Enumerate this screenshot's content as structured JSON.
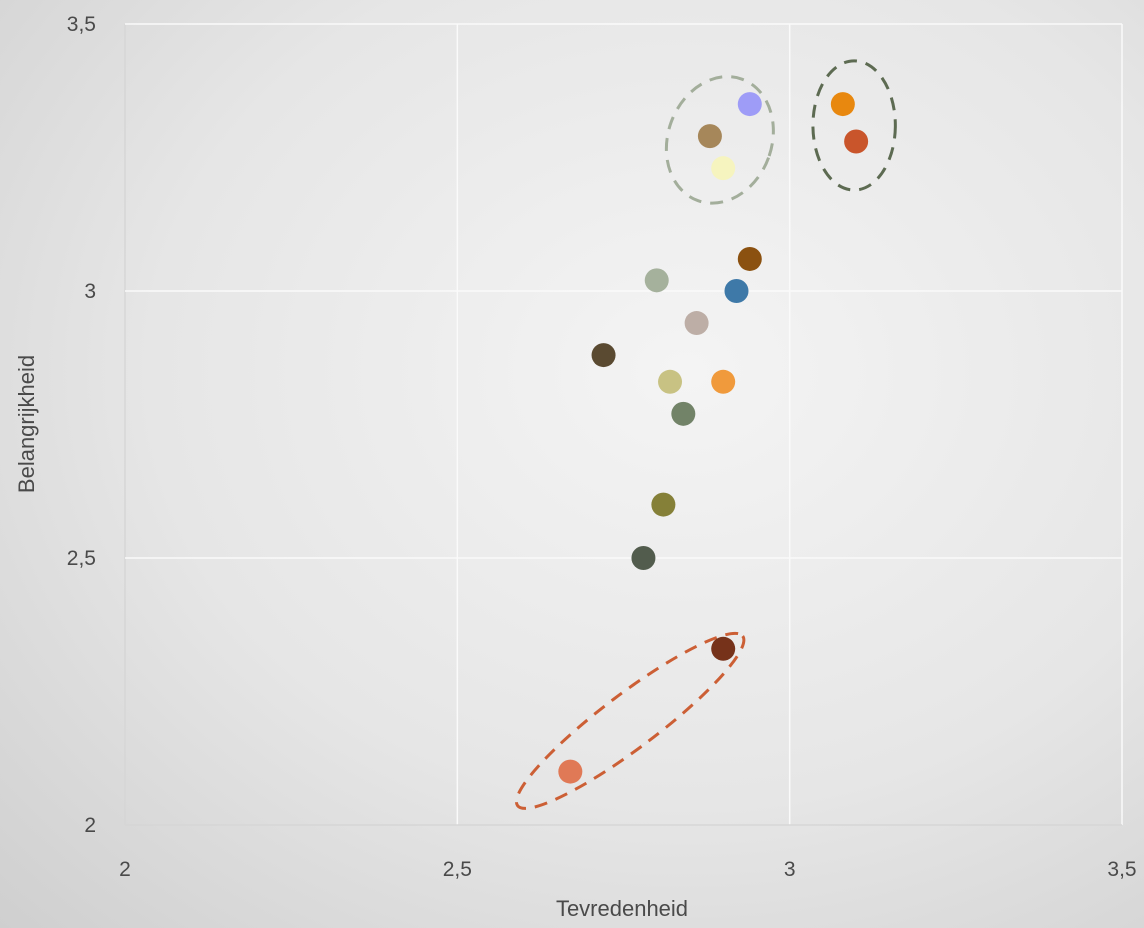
{
  "chart_data": {
    "type": "scatter",
    "title": "",
    "xlabel": "Tevredenheid",
    "ylabel": "Belangrijkheid",
    "xlim": [
      2,
      3.5
    ],
    "ylim": [
      2,
      3.5
    ],
    "xticks": [
      "2",
      "2,5",
      "3",
      "3,5"
    ],
    "yticks": [
      "2",
      "2,5",
      "3",
      "3,5"
    ],
    "grid": true,
    "points": [
      {
        "x": 2.94,
        "y": 3.35,
        "color": "#9e9cf7"
      },
      {
        "x": 3.08,
        "y": 3.35,
        "color": "#e8880f"
      },
      {
        "x": 2.88,
        "y": 3.29,
        "color": "#a6875a"
      },
      {
        "x": 3.1,
        "y": 3.28,
        "color": "#c9552b"
      },
      {
        "x": 2.9,
        "y": 3.23,
        "color": "#f6f4bf"
      },
      {
        "x": 2.94,
        "y": 3.06,
        "color": "#8b5110"
      },
      {
        "x": 2.8,
        "y": 3.02,
        "color": "#a5b19c"
      },
      {
        "x": 2.92,
        "y": 3.0,
        "color": "#3e79a8"
      },
      {
        "x": 2.86,
        "y": 2.94,
        "color": "#bdaea6"
      },
      {
        "x": 2.72,
        "y": 2.88,
        "color": "#5a4a31"
      },
      {
        "x": 2.82,
        "y": 2.83,
        "color": "#c8c283"
      },
      {
        "x": 2.9,
        "y": 2.83,
        "color": "#f09a3c"
      },
      {
        "x": 2.84,
        "y": 2.77,
        "color": "#728368"
      },
      {
        "x": 2.81,
        "y": 2.6,
        "color": "#858038"
      },
      {
        "x": 2.78,
        "y": 2.5,
        "color": "#525c4d"
      },
      {
        "x": 2.9,
        "y": 2.33,
        "color": "#76321a"
      },
      {
        "x": 2.67,
        "y": 2.1,
        "color": "#e07956"
      }
    ],
    "annotations": [
      {
        "shape": "dashed-ellipse",
        "cx": 2.895,
        "cy": 3.283,
        "rx": 0.078,
        "ry": 0.121,
        "rotation": 20,
        "color": "#a3ae9b"
      },
      {
        "shape": "dashed-ellipse",
        "cx": 3.097,
        "cy": 3.31,
        "rx": 0.062,
        "ry": 0.121,
        "rotation": 0,
        "color": "#5d6b52"
      },
      {
        "shape": "dashed-ellipse",
        "cx": 2.76,
        "cy": 2.195,
        "rx": 0.212,
        "ry": 0.051,
        "rotation": -37,
        "color": "#cc5f35"
      }
    ]
  }
}
